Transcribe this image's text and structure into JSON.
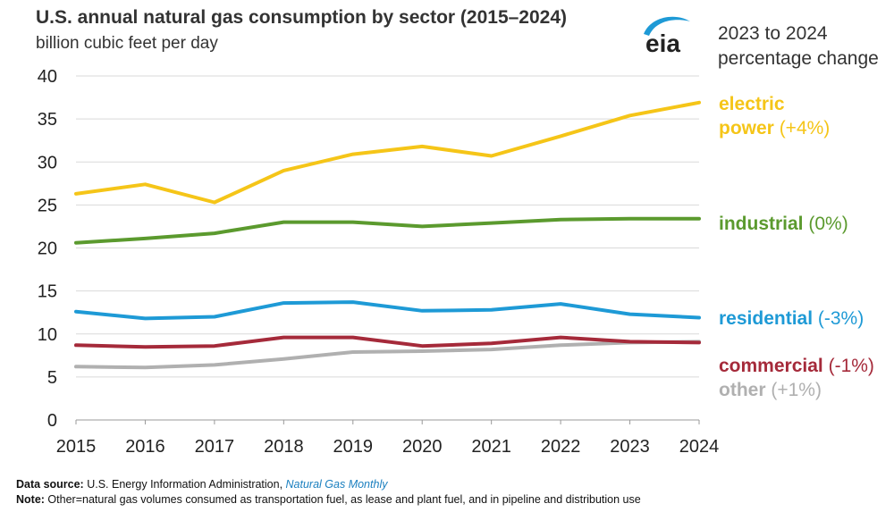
{
  "header": {
    "title": "U.S. annual natural gas consumption by sector (2015–2024)",
    "subtitle": "billion cubic feet per day",
    "pct_heading_line1": "2023 to 2024",
    "pct_heading_line2": "percentage change",
    "logo_text": "eia"
  },
  "colors": {
    "electric": "#F5C518",
    "industrial": "#5B9A2E",
    "residential": "#1E9AD6",
    "commercial": "#A52A3A",
    "other": "#B0B0B0",
    "grid": "#D9D9D9",
    "logo_blue": "#1E9AD6"
  },
  "series_labels": {
    "electric_line1": "electric",
    "electric_line2": "power",
    "electric_change": "(+4%)",
    "industrial": "industrial",
    "industrial_change": "(0%)",
    "residential": "residential",
    "residential_change": "(-3%)",
    "commercial": "commercial",
    "commercial_change": "(-1%)",
    "other": "other",
    "other_change": "(+1%)"
  },
  "chart_data": {
    "type": "line",
    "x": [
      "2015",
      "2016",
      "2017",
      "2018",
      "2019",
      "2020",
      "2021",
      "2022",
      "2023",
      "2024"
    ],
    "ylim": [
      0,
      40
    ],
    "yticks": [
      "0",
      "5",
      "10",
      "15",
      "20",
      "25",
      "30",
      "35",
      "40"
    ],
    "grid": true,
    "legend": "right (direct labels)",
    "title": "U.S. annual natural gas consumption by sector (2015–2024)",
    "ylabel": "billion cubic feet per day",
    "series": [
      {
        "name": "electric power",
        "color_key": "electric",
        "values": [
          26.3,
          27.4,
          25.3,
          29.0,
          30.9,
          31.8,
          30.7,
          33.0,
          35.4,
          36.9
        ]
      },
      {
        "name": "industrial",
        "color_key": "industrial",
        "values": [
          20.6,
          21.1,
          21.7,
          23.0,
          23.0,
          22.5,
          22.9,
          23.3,
          23.4,
          23.4
        ]
      },
      {
        "name": "residential",
        "color_key": "residential",
        "values": [
          12.6,
          11.8,
          12.0,
          13.6,
          13.7,
          12.7,
          12.8,
          13.5,
          12.3,
          11.9
        ]
      },
      {
        "name": "commercial",
        "color_key": "commercial",
        "values": [
          8.7,
          8.5,
          8.6,
          9.6,
          9.6,
          8.6,
          8.9,
          9.6,
          9.1,
          9.0
        ]
      },
      {
        "name": "other",
        "color_key": "other",
        "values": [
          6.2,
          6.1,
          6.4,
          7.1,
          7.9,
          8.0,
          8.2,
          8.7,
          9.0,
          9.1
        ]
      }
    ]
  },
  "footer": {
    "source_label": "Data source:",
    "source_text": " U.S. Energy Information Administration, ",
    "source_link": "Natural Gas Monthly",
    "note_label": "Note:",
    "note_text": " Other=natural gas volumes consumed as transportation fuel, as lease and plant fuel, and in pipeline and distribution use"
  }
}
